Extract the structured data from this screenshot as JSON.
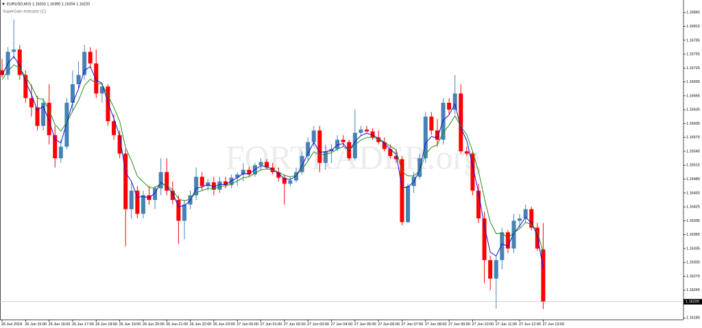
{
  "chart_data": {
    "type": "candlestick",
    "title": "EURUSD,M15  1.16333 1.16390 1.16204 1.16220",
    "subtitle": "SuperGain Indicator (C)",
    "watermark": "FORTRADER.org",
    "categories": [
      "26 Jun 2018",
      null,
      null,
      null,
      "26 Jun 15:00",
      null,
      null,
      null,
      "26 Jun 16:00",
      null,
      null,
      null,
      "26 Jun 17:00",
      null,
      null,
      null,
      "26 Jun 18:00",
      null,
      null,
      null,
      "26 Jun 19:00",
      null,
      null,
      null,
      "26 Jun 20:00",
      null,
      null,
      null,
      "26 Jun 21:00",
      null,
      null,
      null,
      "26 Jun 22:00",
      null,
      null,
      null,
      "26 Jun 23:00",
      null,
      null,
      null,
      "27 Jun 00:00",
      null,
      null,
      null,
      "27 Jun 01:00",
      null,
      null,
      null,
      "27 Jun 02:00",
      null,
      null,
      null,
      "27 Jun 03:00",
      null,
      null,
      null,
      "27 Jun 04:00",
      null,
      null,
      null,
      "27 Jun 05:00",
      null,
      null,
      null,
      "27 Jun 06:00",
      null,
      null,
      null,
      "27 Jun 07:00",
      null,
      null,
      null,
      "27 Jun 08:00",
      null,
      null,
      null,
      "27 Jun 09:00",
      null,
      null,
      null,
      "27 Jun 10:00",
      null,
      null,
      null,
      "27 Jun 11:00",
      null,
      null,
      null,
      "27 Jun 12:00",
      null,
      null,
      null,
      "27 Jun 13:00"
    ],
    "open": [
      1.1672,
      1.1671,
      1.1676,
      1.16765,
      1.1671,
      1.1666,
      1.1664,
      1.166,
      1.1665,
      1.1658,
      1.1653,
      1.16555,
      1.1665,
      1.1669,
      1.1671,
      1.1676,
      1.16735,
      1.1667,
      1.16685,
      1.1661,
      1.1658,
      1.1654,
      1.1642,
      1.1646,
      1.1641,
      1.1645,
      1.1644,
      1.16465,
      1.165,
      1.1646,
      1.1644,
      1.16395,
      1.1643,
      1.1645,
      1.1649,
      1.1647,
      1.16478,
      1.16462,
      1.1648,
      1.16472,
      1.16488,
      1.16495,
      1.16505,
      1.16495,
      1.16515,
      1.16522,
      1.1651,
      1.165,
      1.16488,
      1.16475,
      1.16482,
      1.165,
      1.16535,
      1.16565,
      1.1659,
      1.1652,
      1.16545,
      1.1655,
      1.1657,
      1.16565,
      1.1653,
      1.16585,
      1.16592,
      1.16588,
      1.16575,
      1.16565,
      1.1655,
      1.16535,
      1.16528,
      1.16392,
      1.1647,
      1.1649,
      1.1653,
      1.1662,
      1.1659,
      1.1657,
      1.1665,
      1.16635,
      1.1667,
      1.16545,
      1.1654,
      1.1646,
      1.164,
      1.1631,
      1.1627,
      1.1631,
      1.1637,
      1.16335,
      1.16395,
      1.164,
      1.1642,
      1.1638,
      1.16333
    ],
    "high": [
      1.16745,
      1.1677,
      1.1683,
      1.16775,
      1.1672,
      1.1669,
      1.16665,
      1.1666,
      1.1669,
      1.166,
      1.1657,
      1.1666,
      1.1672,
      1.1674,
      1.16775,
      1.1677,
      1.16765,
      1.1669,
      1.1669,
      1.16625,
      1.1659,
      1.1655,
      1.1648,
      1.1647,
      1.1646,
      1.1647,
      1.1647,
      1.1653,
      1.1653,
      1.1648,
      1.1645,
      1.1644,
      1.1646,
      1.1651,
      1.165,
      1.16485,
      1.1649,
      1.1649,
      1.1649,
      1.16495,
      1.165,
      1.1652,
      1.16512,
      1.1652,
      1.1653,
      1.16528,
      1.1652,
      1.1651,
      1.16495,
      1.1649,
      1.1651,
      1.16545,
      1.16575,
      1.166,
      1.166,
      1.1656,
      1.1656,
      1.1658,
      1.1658,
      1.1657,
      1.16635,
      1.166,
      1.166,
      1.16595,
      1.1659,
      1.16575,
      1.1656,
      1.1655,
      1.16535,
      1.16475,
      1.165,
      1.1654,
      1.1663,
      1.1663,
      1.16615,
      1.1666,
      1.1666,
      1.1671,
      1.1669,
      1.16555,
      1.16545,
      1.16475,
      1.16415,
      1.1632,
      1.1632,
      1.1638,
      1.16375,
      1.1641,
      1.1641,
      1.1643,
      1.16425,
      1.1639,
      1.1639
    ],
    "low": [
      1.16705,
      1.167,
      1.16745,
      1.167,
      1.1665,
      1.1662,
      1.1659,
      1.1659,
      1.1656,
      1.1651,
      1.1652,
      1.1655,
      1.1663,
      1.1668,
      1.167,
      1.16725,
      1.1666,
      1.1665,
      1.166,
      1.1657,
      1.1653,
      1.1634,
      1.164,
      1.164,
      1.164,
      1.1643,
      1.1642,
      1.1645,
      1.1645,
      1.1643,
      1.16345,
      1.16355,
      1.1642,
      1.1644,
      1.1646,
      1.1646,
      1.1645,
      1.16455,
      1.16465,
      1.16465,
      1.1647,
      1.1648,
      1.1649,
      1.1649,
      1.16505,
      1.16505,
      1.16495,
      1.1648,
      1.1643,
      1.1647,
      1.16478,
      1.16495,
      1.16525,
      1.16555,
      1.165,
      1.16505,
      1.1652,
      1.16545,
      1.16555,
      1.16525,
      1.16525,
      1.1658,
      1.16585,
      1.1657,
      1.1656,
      1.16545,
      1.1653,
      1.1652,
      1.16385,
      1.1639,
      1.16455,
      1.16485,
      1.1652,
      1.1658,
      1.16555,
      1.1656,
      1.16625,
      1.16625,
      1.1654,
      1.16535,
      1.1645,
      1.1639,
      1.1626,
      1.16245,
      1.16205,
      1.1629,
      1.16325,
      1.16325,
      1.1638,
      1.1639,
      1.16375,
      1.1633,
      1.16204
    ],
    "close": [
      1.1671,
      1.1676,
      1.16765,
      1.1671,
      1.1666,
      1.1664,
      1.166,
      1.1665,
      1.1658,
      1.1653,
      1.16555,
      1.1665,
      1.1669,
      1.1671,
      1.1676,
      1.16735,
      1.1667,
      1.16685,
      1.1661,
      1.1658,
      1.1654,
      1.1642,
      1.1646,
      1.1641,
      1.1645,
      1.1644,
      1.16465,
      1.165,
      1.1646,
      1.1644,
      1.16395,
      1.1643,
      1.1645,
      1.1649,
      1.1647,
      1.16478,
      1.16462,
      1.1648,
      1.16472,
      1.16488,
      1.16495,
      1.16505,
      1.16495,
      1.16515,
      1.16522,
      1.1651,
      1.165,
      1.16488,
      1.16475,
      1.16482,
      1.165,
      1.16535,
      1.16565,
      1.1659,
      1.1652,
      1.16545,
      1.1655,
      1.1657,
      1.16565,
      1.1653,
      1.16585,
      1.16592,
      1.16588,
      1.16575,
      1.16565,
      1.1655,
      1.16535,
      1.16528,
      1.16392,
      1.1647,
      1.1649,
      1.1653,
      1.1662,
      1.1659,
      1.1657,
      1.1665,
      1.16635,
      1.1667,
      1.16545,
      1.1654,
      1.1646,
      1.164,
      1.1631,
      1.1627,
      1.1631,
      1.1637,
      1.16335,
      1.16395,
      1.164,
      1.1642,
      1.1638,
      1.16335,
      1.1622
    ],
    "up_color": "#4682b4",
    "down_color": "#ff0000",
    "series": [
      {
        "color": "#1010d0",
        "values": [
          1.1671,
          1.16735,
          1.1675,
          1.1673,
          1.16695,
          1.16668,
          1.16634,
          1.16642,
          1.16611,
          1.16571,
          1.16563,
          1.16607,
          1.16649,
          1.1668,
          1.1672,
          1.16728,
          1.16699,
          1.16692,
          1.16651,
          1.16616,
          1.16578,
          1.16499,
          1.1648,
          1.16445,
          1.16448,
          1.16444,
          1.16455,
          1.16478,
          1.16469,
          1.16455,
          1.16425,
          1.16428,
          1.16439,
          1.16465,
          1.16468,
          1.16473,
          1.16468,
          1.16474,
          1.16473,
          1.16481,
          1.16488,
          1.16497,
          1.16496,
          1.16506,
          1.16514,
          1.16512,
          1.16506,
          1.16497,
          1.16486,
          1.16484,
          1.16492,
          1.16514,
          1.1654,
          1.16565,
          1.16543,
          1.16544,
          1.16547,
          1.16559,
          1.16562,
          1.16546,
          1.16566,
          1.16579,
          1.16584,
          1.1658,
          1.16573,
          1.16562,
          1.16549,
          1.16539,
          1.16466,
          1.16468,
          1.16479,
          1.16505,
          1.16563,
          1.16577,
          1.16574,
          1.16612,
          1.16624,
          1.16647,
          1.16596,
          1.16568,
          1.16514,
          1.16457,
          1.16384,
          1.16327,
          1.16319,
          1.16345,
          1.1634,
          1.16368,
          1.16384,
          1.16402,
          1.16391,
          1.16363,
          1.16292
        ]
      },
      {
        "color": "#228b22",
        "values": [
          1.167,
          1.16718,
          1.16732,
          1.16725,
          1.16706,
          1.16686,
          1.1666,
          1.16657,
          1.16634,
          1.16603,
          1.16589,
          1.16607,
          1.16632,
          1.16655,
          1.16687,
          1.16701,
          1.16692,
          1.1669,
          1.16666,
          1.1664,
          1.1661,
          1.16553,
          1.16525,
          1.16491,
          1.16479,
          1.16467,
          1.16466,
          1.16476,
          1.16471,
          1.16462,
          1.16442,
          1.16438,
          1.16442,
          1.16456,
          1.1646,
          1.16465,
          1.16464,
          1.16469,
          1.1647,
          1.16475,
          1.16481,
          1.16488,
          1.1649,
          1.16498,
          1.16505,
          1.16507,
          1.16505,
          1.165,
          1.16493,
          1.1649,
          1.16493,
          1.16506,
          1.16524,
          1.16544,
          1.16537,
          1.16539,
          1.16542,
          1.1655,
          1.16555,
          1.16548,
          1.16559,
          1.16569,
          1.16575,
          1.16575,
          1.16572,
          1.16565,
          1.16556,
          1.16548,
          1.16501,
          1.16492,
          1.16492,
          1.16503,
          1.16538,
          1.16554,
          1.16559,
          1.16586,
          1.16601,
          1.16622,
          1.16599,
          1.16581,
          1.16545,
          1.16502,
          1.16444,
          1.16392,
          1.16367,
          1.16368,
          1.16358,
          1.16369,
          1.16378,
          1.16391,
          1.16388,
          1.16372,
          1.16326
        ]
      }
    ],
    "ylim": [
      1.16181,
      1.16872
    ],
    "yticks": [
      1.16845,
      1.16815,
      1.16785,
      1.16755,
      1.16725,
      1.16695,
      1.16665,
      1.16635,
      1.16605,
      1.16575,
      1.16545,
      1.16515,
      1.16485,
      1.16455,
      1.16425,
      1.16395,
      1.16365,
      1.16335,
      1.16305,
      1.16275,
      1.16245,
      1.16185
    ],
    "current_price": {
      "value": 1.1622,
      "label": "1.16220"
    }
  }
}
